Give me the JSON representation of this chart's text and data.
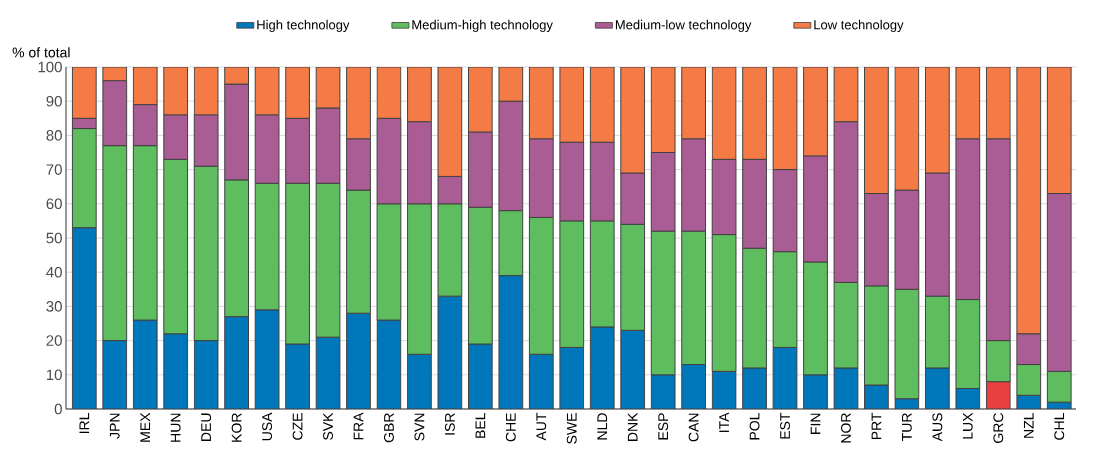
{
  "chart_data": {
    "type": "bar",
    "stacked": true,
    "ylabel": "% of total",
    "categories": [
      "IRL",
      "JPN",
      "MEX",
      "HUN",
      "DEU",
      "KOR",
      "USA",
      "CZE",
      "SVK",
      "FRA",
      "GBR",
      "SVN",
      "ISR",
      "BEL",
      "CHE",
      "AUT",
      "SWE",
      "NLD",
      "DNK",
      "ESP",
      "CAN",
      "ITA",
      "POL",
      "EST",
      "FIN",
      "NOR",
      "PRT",
      "TUR",
      "AUS",
      "LUX",
      "GRC",
      "NZL",
      "CHL"
    ],
    "series": [
      {
        "name": "High technology",
        "color": "#0077bb",
        "colors": [
          "#0077bb",
          "#0077bb",
          "#0077bb",
          "#0077bb",
          "#0077bb",
          "#0077bb",
          "#0077bb",
          "#0077bb",
          "#0077bb",
          "#0077bb",
          "#0077bb",
          "#0077bb",
          "#0077bb",
          "#0077bb",
          "#0077bb",
          "#0077bb",
          "#0077bb",
          "#0077bb",
          "#0077bb",
          "#0077bb",
          "#0077bb",
          "#0077bb",
          "#0077bb",
          "#0077bb",
          "#0077bb",
          "#0077bb",
          "#0077bb",
          "#0077bb",
          "#0077bb",
          "#0077bb",
          "#e84040",
          "#0077bb",
          "#0077bb"
        ],
        "values": [
          53,
          20,
          26,
          22,
          20,
          27,
          29,
          19,
          21,
          28,
          26,
          16,
          33,
          19,
          39,
          16,
          18,
          24,
          23,
          10,
          13,
          11,
          12,
          18,
          10,
          12,
          7,
          3,
          12,
          6,
          8,
          4,
          2
        ]
      },
      {
        "name": "Medium-high technology",
        "color": "#5ebd5e",
        "values": [
          29,
          57,
          51,
          51,
          51,
          40,
          37,
          47,
          45,
          36,
          34,
          44,
          27,
          40,
          19,
          40,
          37,
          31,
          31,
          42,
          39,
          40,
          35,
          28,
          33,
          25,
          29,
          32,
          21,
          26,
          12,
          9,
          9
        ]
      },
      {
        "name": "Medium-low technology",
        "color": "#aa5c94",
        "values": [
          3,
          19,
          12,
          13,
          15,
          28,
          20,
          19,
          22,
          15,
          25,
          24,
          8,
          22,
          32,
          23,
          23,
          23,
          15,
          23,
          27,
          22,
          26,
          24,
          31,
          47,
          27,
          29,
          36,
          47,
          59,
          9,
          52
        ]
      },
      {
        "name": "Low technology",
        "color": "#f47b45",
        "values": [
          15,
          4,
          11,
          14,
          14,
          5,
          14,
          15,
          12,
          21,
          15,
          16,
          32,
          19,
          10,
          21,
          22,
          22,
          31,
          25,
          21,
          27,
          27,
          30,
          26,
          16,
          37,
          36,
          31,
          21,
          21,
          78,
          37
        ]
      }
    ],
    "ylim": [
      0,
      100
    ],
    "yticks": [
      0,
      10,
      20,
      30,
      40,
      50,
      60,
      70,
      80,
      90,
      100
    ],
    "grid": "y",
    "legend": "top"
  }
}
